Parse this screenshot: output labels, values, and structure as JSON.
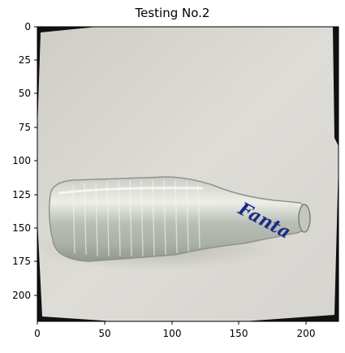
{
  "figure": {
    "title": "Testing No.2"
  },
  "image": {
    "subject": "empty clear glass Fanta bottle lying on a white surface",
    "label_text": "Fanta",
    "label_color": "#1a2a8a",
    "background_color": "#d9d8d3"
  },
  "axes": {
    "x_ticks": [
      "0",
      "50",
      "100",
      "150",
      "200"
    ],
    "y_ticks": [
      "0",
      "25",
      "50",
      "75",
      "100",
      "125",
      "150",
      "175",
      "200"
    ],
    "xlim": [
      0,
      224
    ],
    "ylim": [
      224,
      0
    ]
  }
}
